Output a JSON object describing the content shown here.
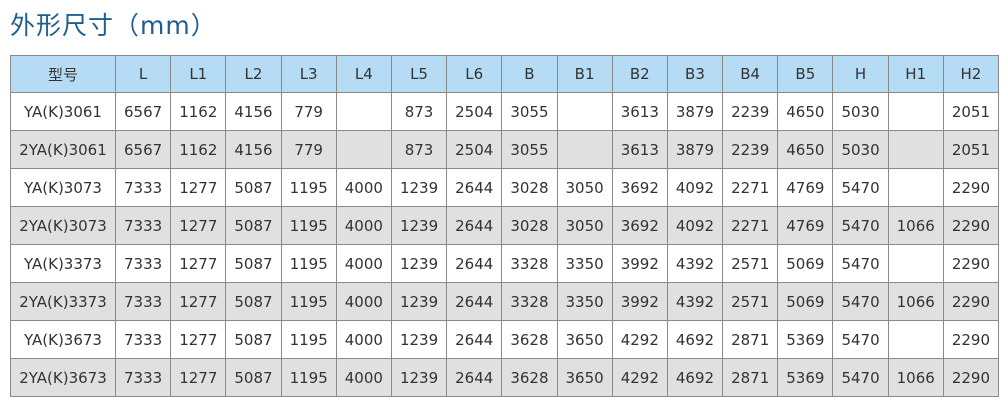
{
  "title": "外形尺寸（mm）",
  "table": {
    "headers": [
      "型号",
      "L",
      "L1",
      "L2",
      "L3",
      "L4",
      "L5",
      "L6",
      "B",
      "B1",
      "B2",
      "B3",
      "B4",
      "B5",
      "H",
      "H1",
      "H2"
    ],
    "rows": [
      [
        "YA(K)3061",
        "6567",
        "1162",
        "4156",
        "779",
        "",
        "873",
        "2504",
        "3055",
        "",
        "3613",
        "3879",
        "2239",
        "4650",
        "5030",
        "",
        "2051"
      ],
      [
        "2YA(K)3061",
        "6567",
        "1162",
        "4156",
        "779",
        "",
        "873",
        "2504",
        "3055",
        "",
        "3613",
        "3879",
        "2239",
        "4650",
        "5030",
        "",
        "2051"
      ],
      [
        "YA(K)3073",
        "7333",
        "1277",
        "5087",
        "1195",
        "4000",
        "1239",
        "2644",
        "3028",
        "3050",
        "3692",
        "4092",
        "2271",
        "4769",
        "5470",
        "",
        "2290"
      ],
      [
        "2YA(K)3073",
        "7333",
        "1277",
        "5087",
        "1195",
        "4000",
        "1239",
        "2644",
        "3028",
        "3050",
        "3692",
        "4092",
        "2271",
        "4769",
        "5470",
        "1066",
        "2290"
      ],
      [
        "YA(K)3373",
        "7333",
        "1277",
        "5087",
        "1195",
        "4000",
        "1239",
        "2644",
        "3328",
        "3350",
        "3992",
        "4392",
        "2571",
        "5069",
        "5470",
        "",
        "2290"
      ],
      [
        "2YA(K)3373",
        "7333",
        "1277",
        "5087",
        "1195",
        "4000",
        "1239",
        "2644",
        "3328",
        "3350",
        "3992",
        "4392",
        "2571",
        "5069",
        "5470",
        "1066",
        "2290"
      ],
      [
        "YA(K)3673",
        "7333",
        "1277",
        "5087",
        "1195",
        "4000",
        "1239",
        "2644",
        "3628",
        "3650",
        "4292",
        "4692",
        "2871",
        "5369",
        "5470",
        "",
        "2290"
      ],
      [
        "2YA(K)3673",
        "7333",
        "1277",
        "5087",
        "1195",
        "4000",
        "1239",
        "2644",
        "3628",
        "3650",
        "4292",
        "4692",
        "2871",
        "5369",
        "5470",
        "1066",
        "2290"
      ]
    ]
  },
  "colors": {
    "header_bg": "#b5dcf4",
    "alt_row_bg": "#e0e0e0",
    "title": "#1f5f8f"
  }
}
